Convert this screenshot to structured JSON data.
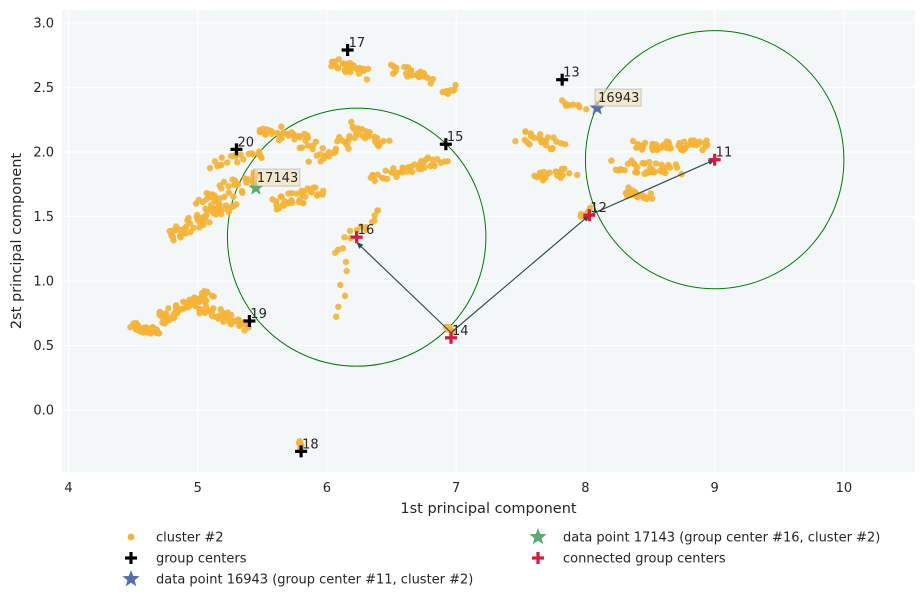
{
  "chart_data": {
    "type": "scatter",
    "xlabel": "1st principal component",
    "ylabel": "2st principal component",
    "xlim": [
      3.95,
      10.55
    ],
    "ylim": [
      -0.48,
      3.1
    ],
    "xticks": [
      4,
      5,
      6,
      7,
      8,
      9,
      10
    ],
    "yticks": [
      0.0,
      0.5,
      1.0,
      1.5,
      2.0,
      2.5,
      3.0
    ],
    "grid": true,
    "legend_position": "bottom",
    "colors": {
      "cluster": "#f5b335",
      "group_center": "#000000",
      "connected_center": "#d6193c",
      "star_16943": "#5470b0",
      "star_17143": "#5aab6e",
      "circle": "#007a00",
      "arrow": "#2f4f4f",
      "plot_bg": "#f3f7f8"
    },
    "cluster_segments": [
      {
        "from": [
          4.5,
          0.65
        ],
        "to": [
          4.7,
          0.6
        ],
        "n": 40,
        "spread": 0.03
      },
      {
        "from": [
          4.7,
          0.7
        ],
        "to": [
          5.1,
          0.9
        ],
        "n": 55,
        "spread": 0.04
      },
      {
        "from": [
          5.0,
          0.8
        ],
        "to": [
          5.4,
          0.65
        ],
        "n": 40,
        "spread": 0.04
      },
      {
        "from": [
          4.8,
          1.35
        ],
        "to": [
          5.25,
          1.6
        ],
        "n": 60,
        "spread": 0.05
      },
      {
        "from": [
          5.0,
          1.6
        ],
        "to": [
          5.45,
          1.8
        ],
        "n": 40,
        "spread": 0.06
      },
      {
        "from": [
          5.1,
          1.9
        ],
        "to": [
          5.5,
          2.0
        ],
        "n": 20,
        "spread": 0.04
      },
      {
        "from": [
          5.5,
          2.2
        ],
        "to": [
          5.9,
          2.05
        ],
        "n": 35,
        "spread": 0.05
      },
      {
        "from": [
          5.6,
          1.6
        ],
        "to": [
          5.95,
          1.7
        ],
        "n": 35,
        "spread": 0.05
      },
      {
        "from": [
          5.9,
          1.95
        ],
        "to": [
          6.2,
          2.1
        ],
        "n": 25,
        "spread": 0.05
      },
      {
        "from": [
          6.2,
          2.2
        ],
        "to": [
          6.45,
          2.05
        ],
        "n": 25,
        "spread": 0.04
      },
      {
        "from": [
          6.05,
          2.7
        ],
        "to": [
          6.3,
          2.6
        ],
        "n": 30,
        "spread": 0.04
      },
      {
        "from": [
          6.5,
          2.65
        ],
        "to": [
          6.8,
          2.55
        ],
        "n": 25,
        "spread": 0.04
      },
      {
        "from": [
          6.9,
          2.45
        ],
        "to": [
          7.0,
          2.5
        ],
        "n": 8,
        "spread": 0.02
      },
      {
        "from": [
          6.35,
          1.8
        ],
        "to": [
          6.9,
          1.95
        ],
        "n": 40,
        "spread": 0.04
      },
      {
        "from": [
          6.1,
          1.25
        ],
        "to": [
          6.4,
          1.55
        ],
        "n": 15,
        "spread": 0.04
      },
      {
        "from": [
          6.1,
          0.75
        ],
        "to": [
          6.15,
          1.15
        ],
        "n": 6,
        "spread": 0.03
      },
      {
        "from": [
          7.5,
          2.12
        ],
        "to": [
          7.8,
          2.05
        ],
        "n": 25,
        "spread": 0.05
      },
      {
        "from": [
          7.6,
          1.8
        ],
        "to": [
          7.9,
          1.85
        ],
        "n": 20,
        "spread": 0.04
      },
      {
        "from": [
          7.8,
          2.38
        ],
        "to": [
          8.0,
          2.35
        ],
        "n": 8,
        "spread": 0.02
      },
      {
        "from": [
          8.25,
          1.9
        ],
        "to": [
          8.7,
          1.85
        ],
        "n": 40,
        "spread": 0.05
      },
      {
        "from": [
          8.3,
          1.7
        ],
        "to": [
          8.5,
          1.65
        ],
        "n": 20,
        "spread": 0.03
      },
      {
        "from": [
          8.4,
          2.05
        ],
        "to": [
          8.95,
          2.05
        ],
        "n": 55,
        "spread": 0.04
      },
      {
        "from": [
          7.95,
          1.5
        ],
        "to": [
          8.05,
          1.55
        ],
        "n": 8,
        "spread": 0.02
      },
      {
        "from": [
          6.92,
          0.65
        ],
        "to": [
          6.96,
          0.62
        ],
        "n": 8,
        "spread": 0.01
      },
      {
        "from": [
          5.78,
          -0.24
        ],
        "to": [
          5.8,
          -0.3
        ],
        "n": 8,
        "spread": 0.01
      }
    ],
    "group_centers": [
      {
        "label": "13",
        "x": 7.82,
        "y": 2.56
      },
      {
        "label": "15",
        "x": 6.92,
        "y": 2.06
      },
      {
        "label": "17",
        "x": 6.16,
        "y": 2.79
      },
      {
        "label": "18",
        "x": 5.8,
        "y": -0.32
      },
      {
        "label": "19",
        "x": 5.4,
        "y": 0.69
      },
      {
        "label": "20",
        "x": 5.3,
        "y": 2.02
      }
    ],
    "connected_centers": [
      {
        "label": "11",
        "x": 9.0,
        "y": 1.94
      },
      {
        "label": "12",
        "x": 8.03,
        "y": 1.51
      },
      {
        "label": "14",
        "x": 6.96,
        "y": 0.56
      },
      {
        "label": "16",
        "x": 6.23,
        "y": 1.34
      }
    ],
    "arrows": [
      {
        "from": [
          6.96,
          0.6
        ],
        "to": [
          6.23,
          1.3
        ]
      },
      {
        "from": [
          6.96,
          0.6
        ],
        "to": [
          8.03,
          1.51
        ]
      },
      {
        "from": [
          8.03,
          1.51
        ],
        "to": [
          9.0,
          1.94
        ]
      }
    ],
    "circles": [
      {
        "cx": 6.23,
        "cy": 1.34,
        "r": 1.0
      },
      {
        "cx": 9.0,
        "cy": 1.94,
        "r": 1.0
      }
    ],
    "star_points": [
      {
        "label": "16943",
        "x": 8.09,
        "y": 2.34,
        "series": 2
      },
      {
        "label": "17143",
        "x": 5.45,
        "y": 1.72,
        "series": 3
      }
    ],
    "series": [
      {
        "name": "cluster #2"
      },
      {
        "name": "group centers"
      },
      {
        "name": "data point 16943 (group center #11, cluster #2)"
      },
      {
        "name": "data point 17143 (group center #16, cluster #2)"
      },
      {
        "name": "connected group centers"
      }
    ]
  }
}
